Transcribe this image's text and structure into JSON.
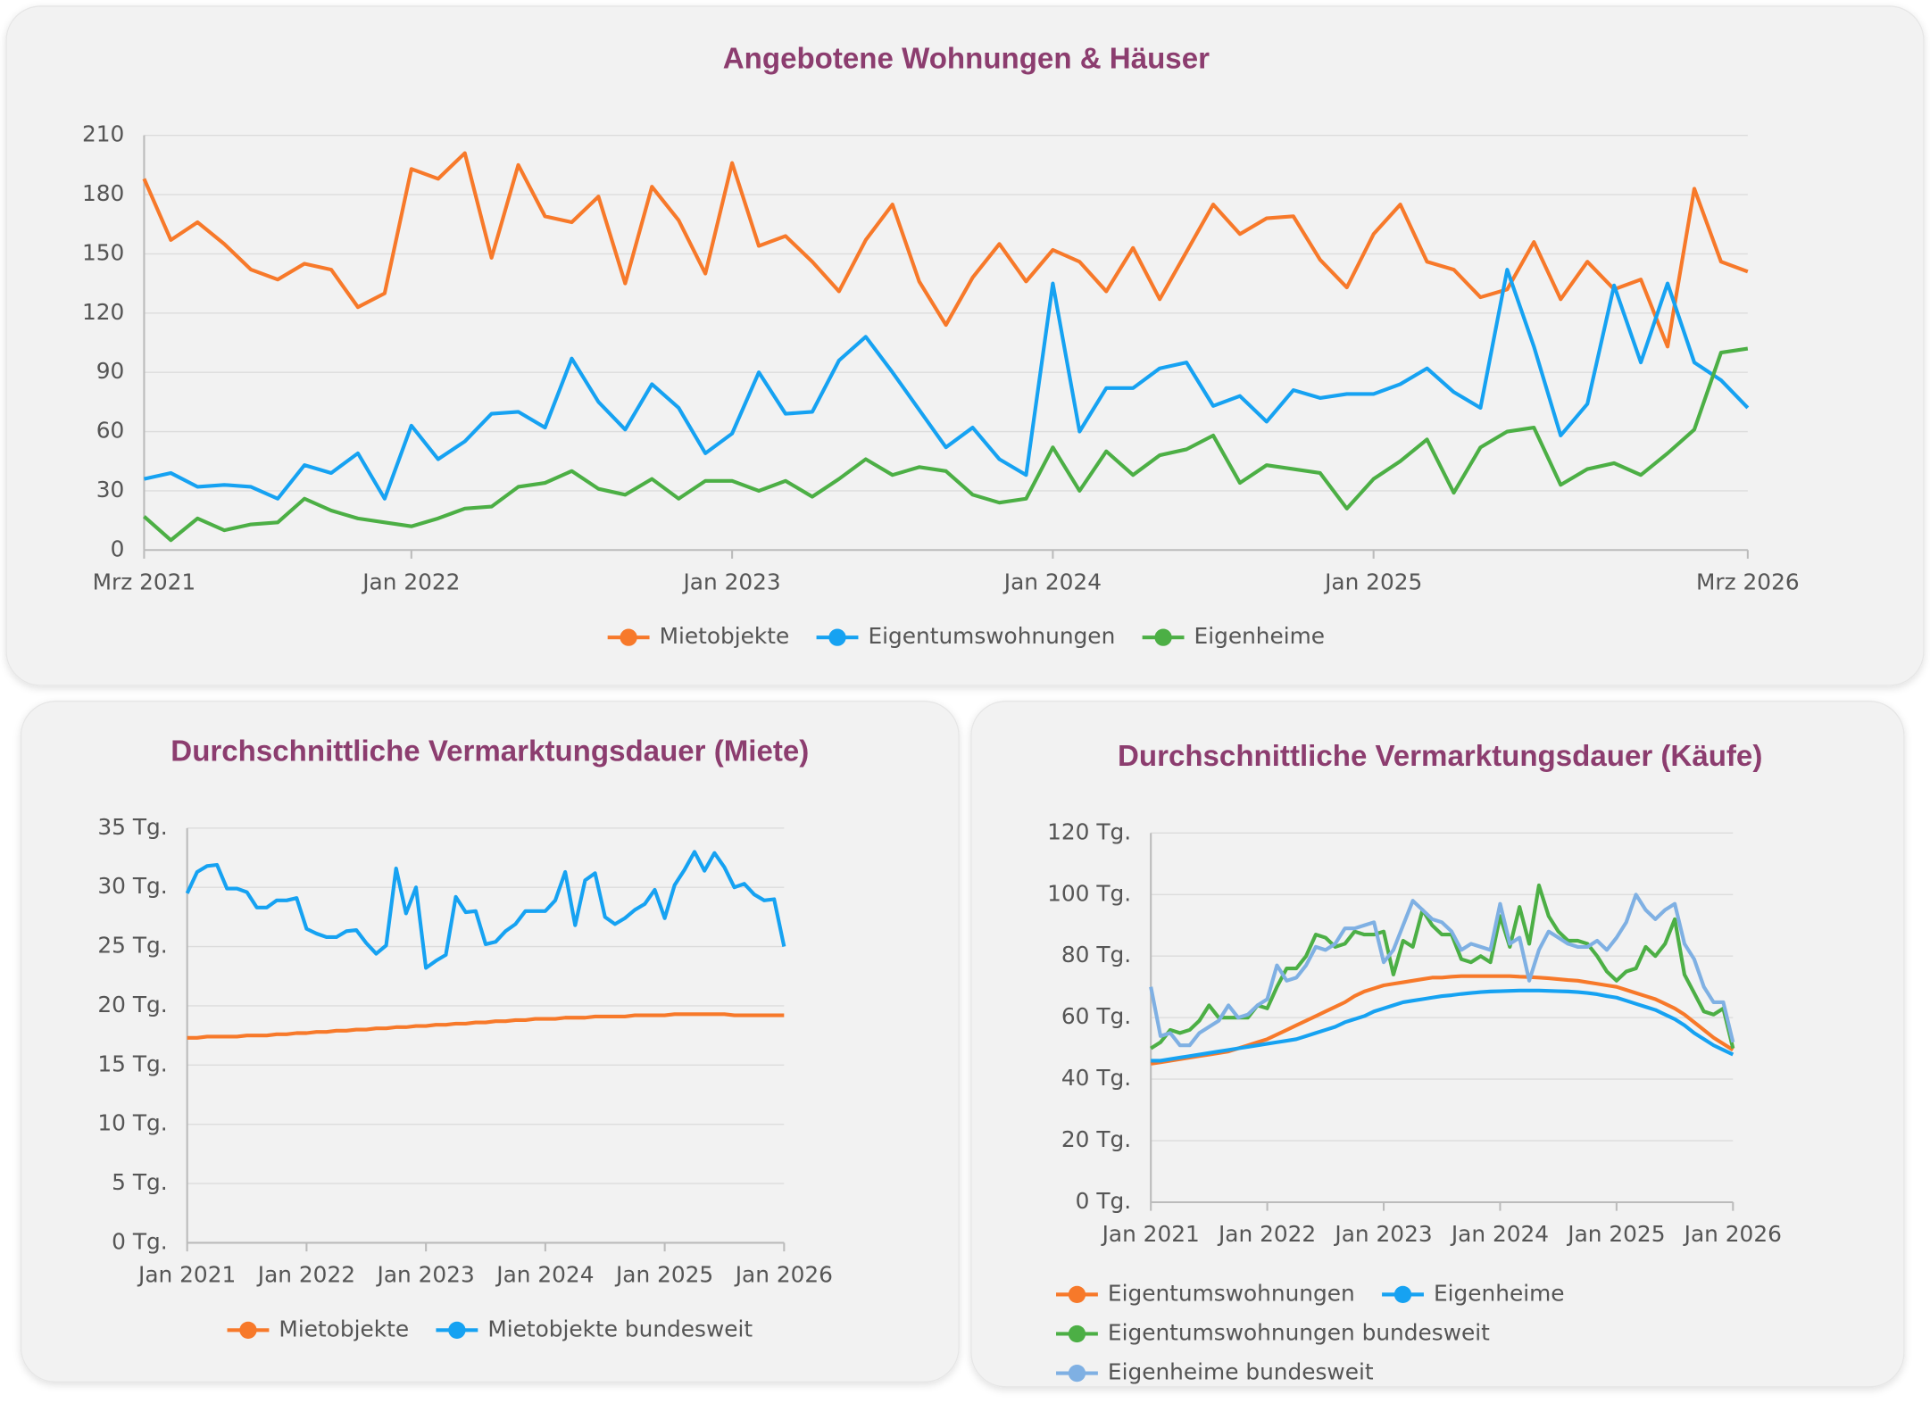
{
  "chart_data": [
    {
      "type": "line",
      "title": "Angebotene Wohnungen & Häuser",
      "grid": true,
      "legend": "bottom",
      "x": [
        "2021-03",
        "2021-04",
        "2021-05",
        "2021-06",
        "2021-07",
        "2021-08",
        "2021-09",
        "2021-10",
        "2021-11",
        "2021-12",
        "2022-01",
        "2022-02",
        "2022-03",
        "2022-04",
        "2022-05",
        "2022-06",
        "2022-07",
        "2022-08",
        "2022-09",
        "2022-10",
        "2022-11",
        "2022-12",
        "2023-01",
        "2023-02",
        "2023-03",
        "2023-04",
        "2023-05",
        "2023-06",
        "2023-07",
        "2023-08",
        "2023-09",
        "2023-10",
        "2023-11",
        "2023-12",
        "2024-01",
        "2024-02",
        "2024-03",
        "2024-04",
        "2024-05",
        "2024-06",
        "2024-07",
        "2024-08",
        "2024-09",
        "2024-10",
        "2024-11",
        "2024-12",
        "2025-01",
        "2025-02",
        "2025-03",
        "2025-04",
        "2025-05",
        "2025-06",
        "2025-07",
        "2025-08",
        "2025-09",
        "2025-10",
        "2025-11",
        "2025-12",
        "2026-01",
        "2026-02",
        "2026-03"
      ],
      "xlim": [
        "2021-03",
        "2026-03"
      ],
      "xticks": [
        {
          "value": "2021-03",
          "label": "Mrz 2021"
        },
        {
          "value": "2022-01",
          "label": "Jan 2022"
        },
        {
          "value": "2023-01",
          "label": "Jan 2023"
        },
        {
          "value": "2024-01",
          "label": "Jan 2024"
        },
        {
          "value": "2025-01",
          "label": "Jan 2025"
        },
        {
          "value": "2026-03",
          "label": "Mrz 2026"
        }
      ],
      "ylim": [
        0,
        210
      ],
      "yticks": [
        0,
        30,
        60,
        90,
        120,
        150,
        180,
        210
      ],
      "series": [
        {
          "name": "Mietobjekte",
          "color": "#f7792a",
          "values": [
            188,
            157,
            166,
            155,
            142,
            137,
            145,
            142,
            123,
            130,
            193,
            188,
            201,
            148,
            195,
            169,
            166,
            179,
            135,
            184,
            167,
            140,
            196,
            154,
            159,
            146,
            131,
            157,
            175,
            136,
            114,
            138,
            155,
            136,
            152,
            146,
            131,
            153,
            127,
            151,
            175,
            160,
            168,
            169,
            147,
            133,
            160,
            175,
            146,
            142,
            128,
            132,
            156,
            127,
            146,
            132,
            137,
            103,
            183,
            146,
            141
          ]
        },
        {
          "name": "Eigentumswohnungen",
          "color": "#16a2f2",
          "values": [
            36,
            39,
            32,
            33,
            32,
            26,
            43,
            39,
            49,
            26,
            63,
            46,
            55,
            69,
            70,
            62,
            97,
            75,
            61,
            84,
            72,
            49,
            59,
            90,
            69,
            70,
            96,
            108,
            90,
            71,
            52,
            62,
            46,
            38,
            135,
            60,
            82,
            82,
            92,
            95,
            73,
            78,
            65,
            81,
            77,
            79,
            79,
            84,
            92,
            80,
            72,
            142,
            103,
            58,
            74,
            134,
            95,
            135,
            95,
            86,
            72
          ]
        },
        {
          "name": "Eigenheime",
          "color": "#4caf45",
          "values": [
            17,
            5,
            16,
            10,
            13,
            14,
            26,
            20,
            16,
            14,
            12,
            16,
            21,
            22,
            32,
            34,
            40,
            31,
            28,
            36,
            26,
            35,
            35,
            30,
            35,
            27,
            36,
            46,
            38,
            42,
            40,
            28,
            24,
            26,
            52,
            30,
            50,
            38,
            48,
            51,
            58,
            34,
            43,
            41,
            39,
            21,
            36,
            45,
            56,
            29,
            52,
            60,
            62,
            33,
            41,
            44,
            38,
            49,
            61,
            100,
            102
          ]
        }
      ]
    },
    {
      "type": "line",
      "title": "Durchschnittliche Vermarktungsdauer (Miete)",
      "grid": true,
      "legend": "bottom",
      "x": [
        "2021-01",
        "2021-02",
        "2021-03",
        "2021-04",
        "2021-05",
        "2021-06",
        "2021-07",
        "2021-08",
        "2021-09",
        "2021-10",
        "2021-11",
        "2021-12",
        "2022-01",
        "2022-02",
        "2022-03",
        "2022-04",
        "2022-05",
        "2022-06",
        "2022-07",
        "2022-08",
        "2022-09",
        "2022-10",
        "2022-11",
        "2022-12",
        "2023-01",
        "2023-02",
        "2023-03",
        "2023-04",
        "2023-05",
        "2023-06",
        "2023-07",
        "2023-08",
        "2023-09",
        "2023-10",
        "2023-11",
        "2023-12",
        "2024-01",
        "2024-02",
        "2024-03",
        "2024-04",
        "2024-05",
        "2024-06",
        "2024-07",
        "2024-08",
        "2024-09",
        "2024-10",
        "2024-11",
        "2024-12",
        "2025-01",
        "2025-02",
        "2025-03",
        "2025-04",
        "2025-05",
        "2025-06",
        "2025-07",
        "2025-08",
        "2025-09",
        "2025-10",
        "2025-11",
        "2025-12",
        "2026-01"
      ],
      "xlim": [
        "2021-01",
        "2026-01"
      ],
      "xticks": [
        {
          "value": "2021-01",
          "label": "Jan 2021"
        },
        {
          "value": "2022-01",
          "label": "Jan 2022"
        },
        {
          "value": "2023-01",
          "label": "Jan 2023"
        },
        {
          "value": "2024-01",
          "label": "Jan 2024"
        },
        {
          "value": "2025-01",
          "label": "Jan 2025"
        },
        {
          "value": "2026-01",
          "label": "Jan 2026"
        }
      ],
      "ylim": [
        0,
        35
      ],
      "yticks": [
        {
          "value": 0,
          "label": "0 Tg."
        },
        {
          "value": 5,
          "label": "5 Tg."
        },
        {
          "value": 10,
          "label": "10 Tg."
        },
        {
          "value": 15,
          "label": "15 Tg."
        },
        {
          "value": 20,
          "label": "20 Tg."
        },
        {
          "value": 25,
          "label": "25 Tg."
        },
        {
          "value": 30,
          "label": "30 Tg."
        },
        {
          "value": 35,
          "label": "35 Tg."
        }
      ],
      "series": [
        {
          "name": "Mietobjekte",
          "color": "#f7792a",
          "values": [
            17.3,
            17.3,
            17.4,
            17.4,
            17.4,
            17.4,
            17.5,
            17.5,
            17.5,
            17.6,
            17.6,
            17.7,
            17.7,
            17.8,
            17.8,
            17.9,
            17.9,
            18.0,
            18.0,
            18.1,
            18.1,
            18.2,
            18.2,
            18.3,
            18.3,
            18.4,
            18.4,
            18.5,
            18.5,
            18.6,
            18.6,
            18.7,
            18.7,
            18.8,
            18.8,
            18.9,
            18.9,
            18.9,
            19.0,
            19.0,
            19.0,
            19.1,
            19.1,
            19.1,
            19.1,
            19.2,
            19.2,
            19.2,
            19.2,
            19.3,
            19.3,
            19.3,
            19.3,
            19.3,
            19.3,
            19.2,
            19.2,
            19.2,
            19.2,
            19.2,
            19.2
          ]
        },
        {
          "name": "Mietobjekte bundesweit",
          "color": "#16a2f2",
          "values": [
            29.5,
            31.3,
            31.8,
            31.9,
            29.9,
            29.9,
            29.6,
            28.3,
            28.3,
            28.9,
            28.9,
            29.1,
            26.5,
            26.1,
            25.8,
            25.8,
            26.3,
            26.4,
            25.3,
            24.4,
            25.1,
            31.6,
            27.8,
            30.0,
            23.2,
            23.8,
            24.3,
            29.2,
            27.9,
            28.0,
            25.2,
            25.4,
            26.3,
            26.9,
            28.0,
            28.0,
            28.0,
            28.9,
            31.3,
            26.8,
            30.6,
            31.2,
            27.5,
            26.9,
            27.4,
            28.1,
            28.6,
            29.8,
            27.4,
            30.2,
            31.5,
            33.0,
            31.4,
            32.9,
            31.7,
            30.0,
            30.3,
            29.4,
            28.9,
            29.0,
            25.0
          ]
        }
      ]
    },
    {
      "type": "line",
      "title": "Durchschnittliche Vermarktungsdauer (Käufe)",
      "grid": true,
      "legend": "bottom",
      "x": [
        "2021-01",
        "2021-02",
        "2021-03",
        "2021-04",
        "2021-05",
        "2021-06",
        "2021-07",
        "2021-08",
        "2021-09",
        "2021-10",
        "2021-11",
        "2021-12",
        "2022-01",
        "2022-02",
        "2022-03",
        "2022-04",
        "2022-05",
        "2022-06",
        "2022-07",
        "2022-08",
        "2022-09",
        "2022-10",
        "2022-11",
        "2022-12",
        "2023-01",
        "2023-02",
        "2023-03",
        "2023-04",
        "2023-05",
        "2023-06",
        "2023-07",
        "2023-08",
        "2023-09",
        "2023-10",
        "2023-11",
        "2023-12",
        "2024-01",
        "2024-02",
        "2024-03",
        "2024-04",
        "2024-05",
        "2024-06",
        "2024-07",
        "2024-08",
        "2024-09",
        "2024-10",
        "2024-11",
        "2024-12",
        "2025-01",
        "2025-02",
        "2025-03",
        "2025-04",
        "2025-05",
        "2025-06",
        "2025-07",
        "2025-08",
        "2025-09",
        "2025-10",
        "2025-11",
        "2025-12",
        "2026-01"
      ],
      "xlim": [
        "2021-01",
        "2026-01"
      ],
      "xticks": [
        {
          "value": "2021-01",
          "label": "Jan 2021"
        },
        {
          "value": "2022-01",
          "label": "Jan 2022"
        },
        {
          "value": "2023-01",
          "label": "Jan 2023"
        },
        {
          "value": "2024-01",
          "label": "Jan 2024"
        },
        {
          "value": "2025-01",
          "label": "Jan 2025"
        },
        {
          "value": "2026-01",
          "label": "Jan 2026"
        }
      ],
      "ylim": [
        0,
        120
      ],
      "yticks": [
        {
          "value": 0,
          "label": "0 Tg."
        },
        {
          "value": 20,
          "label": "20 Tg."
        },
        {
          "value": 40,
          "label": "40 Tg."
        },
        {
          "value": 60,
          "label": "60 Tg."
        },
        {
          "value": 80,
          "label": "80 Tg."
        },
        {
          "value": 100,
          "label": "100 Tg."
        },
        {
          "value": 120,
          "label": "120 Tg."
        }
      ],
      "series": [
        {
          "name": "Eigentumswohnungen",
          "color": "#f7792a",
          "values": [
            45,
            45.5,
            46,
            46.5,
            47,
            47.5,
            48,
            48.5,
            49,
            50,
            51,
            52,
            53,
            54.5,
            56,
            57.5,
            59,
            60.5,
            62,
            63.5,
            65,
            67,
            68.5,
            69.5,
            70.5,
            71,
            71.5,
            72,
            72.5,
            73,
            73,
            73.3,
            73.5,
            73.5,
            73.5,
            73.5,
            73.5,
            73.5,
            73.3,
            73.2,
            73,
            72.8,
            72.5,
            72.2,
            72,
            71.5,
            71,
            70.5,
            70,
            69,
            68,
            67,
            66,
            64.5,
            63,
            61,
            58.5,
            56,
            53.5,
            51.5,
            49.5
          ]
        },
        {
          "name": "Eigenheime",
          "color": "#16a2f2",
          "values": [
            46,
            46,
            46.5,
            47,
            47.5,
            48,
            48.5,
            49,
            49.5,
            50,
            50.5,
            51,
            51.5,
            52,
            52.5,
            53,
            54,
            55,
            56,
            57,
            58.5,
            59.5,
            60.5,
            62,
            63,
            64,
            65,
            65.5,
            66,
            66.5,
            67,
            67.3,
            67.7,
            68,
            68.3,
            68.5,
            68.6,
            68.7,
            68.8,
            68.8,
            68.8,
            68.7,
            68.6,
            68.5,
            68.3,
            68,
            67.6,
            67,
            66.5,
            65.5,
            64.5,
            63.5,
            62.5,
            61,
            59.5,
            57.5,
            55,
            53,
            51,
            49.5,
            48
          ]
        },
        {
          "name": "Eigentumswohnungen bundesweit",
          "color": "#4caf45",
          "values": [
            50,
            52,
            56,
            55,
            56,
            59,
            64,
            60,
            60,
            60,
            60,
            64,
            63,
            70,
            76,
            76,
            80,
            87,
            86,
            83,
            84,
            88,
            87,
            87,
            88,
            74,
            85,
            83,
            95,
            90,
            87,
            87,
            79,
            78,
            80,
            78,
            93,
            83,
            96,
            84,
            103,
            93,
            88,
            85,
            85,
            84,
            80,
            75,
            72,
            75,
            76,
            83,
            80,
            84,
            92,
            74,
            68,
            62,
            61,
            63,
            50
          ]
        },
        {
          "name": "Eigenheime bundesweit",
          "color": "#7fb0e3",
          "values": [
            70,
            54,
            55,
            51,
            51,
            55,
            57,
            59,
            64,
            60,
            61,
            64,
            66,
            77,
            72,
            73,
            77,
            83,
            82,
            84,
            89,
            89,
            90,
            91,
            78,
            82,
            90,
            98,
            95,
            92,
            91,
            88,
            82,
            84,
            83,
            82,
            97,
            84,
            86,
            72,
            82,
            88,
            86,
            84,
            83,
            83,
            85,
            82,
            86,
            91,
            100,
            95,
            92,
            95,
            97,
            84,
            79,
            70,
            65,
            65,
            52
          ]
        }
      ]
    }
  ]
}
